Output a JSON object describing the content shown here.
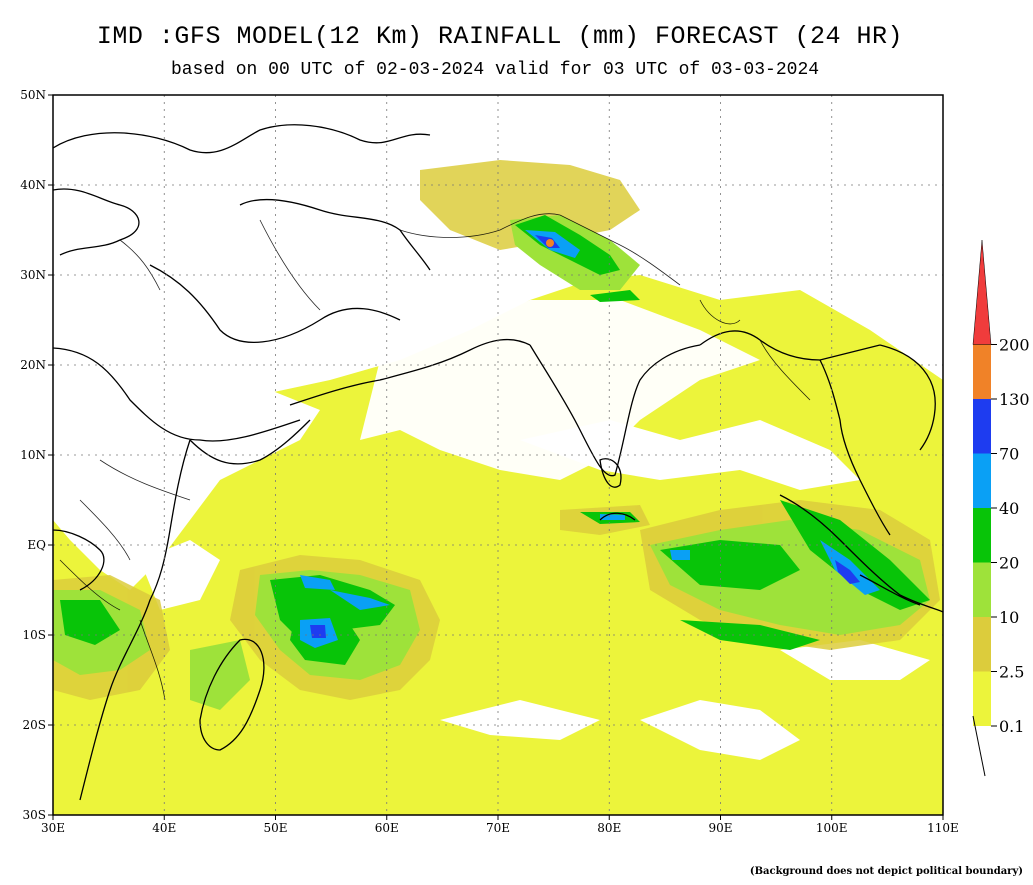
{
  "map": {
    "title": "IMD :GFS MODEL(12 Km) RAINFALL (mm) FORECAST (24 HR)",
    "subtitle": "based on 00 UTC of 02-03-2024 valid for 03 UTC of 03-03-2024",
    "footnote": "(Background does not depict political boundary)",
    "extent": {
      "lon": [
        30,
        110
      ],
      "lat": [
        -30,
        50
      ]
    },
    "lon_ticks": [
      {
        "value": 30,
        "label": "30E"
      },
      {
        "value": 40,
        "label": "40E"
      },
      {
        "value": 50,
        "label": "50E"
      },
      {
        "value": 60,
        "label": "60E"
      },
      {
        "value": 70,
        "label": "70E"
      },
      {
        "value": 80,
        "label": "80E"
      },
      {
        "value": 90,
        "label": "90E"
      },
      {
        "value": 100,
        "label": "100E"
      },
      {
        "value": 110,
        "label": "110E"
      }
    ],
    "lat_ticks": [
      {
        "value": 50,
        "label": "50N"
      },
      {
        "value": 40,
        "label": "40N"
      },
      {
        "value": 30,
        "label": "30N"
      },
      {
        "value": 20,
        "label": "20N"
      },
      {
        "value": 10,
        "label": "10N"
      },
      {
        "value": 0,
        "label": "EQ"
      },
      {
        "value": -10,
        "label": "10S"
      },
      {
        "value": -20,
        "label": "20S"
      },
      {
        "value": -30,
        "label": "30S"
      }
    ],
    "background_color": "#ecf43b",
    "legend": {
      "unit": "mm",
      "levels": [
        {
          "label": "0.1",
          "color": "#ecf43b"
        },
        {
          "label": "2.5",
          "color": "#dccc3c"
        },
        {
          "label": "10",
          "color": "#9ee23a"
        },
        {
          "label": "20",
          "color": "#08c408"
        },
        {
          "label": "40",
          "color": "#0aa0f5"
        },
        {
          "label": "70",
          "color": "#1e3cf0"
        },
        {
          "label": "130",
          "color": "#f08228"
        },
        {
          "label": "200",
          "color": "#f03c3c"
        }
      ]
    }
  }
}
